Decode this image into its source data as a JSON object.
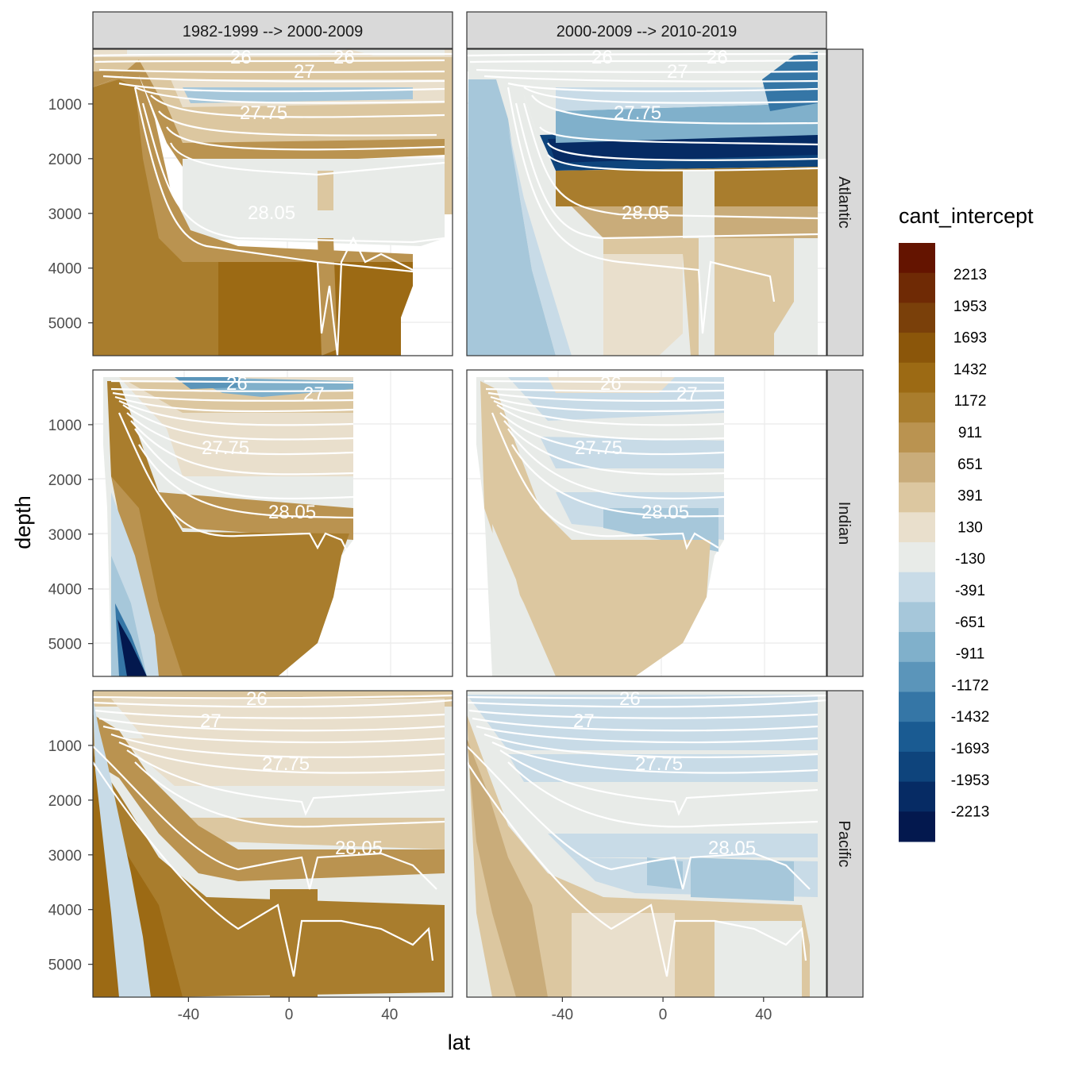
{
  "chart_data": {
    "type": "heatmap",
    "xlabel": "lat",
    "ylabel": "depth",
    "x_ticks": [
      -40,
      0,
      40
    ],
    "y_ticks": [
      1000,
      2000,
      3000,
      4000,
      5000
    ],
    "xlim": [
      -78,
      65
    ],
    "ylim": [
      5600,
      0
    ],
    "y_reversed": true,
    "column_facets": [
      "1982-1999 --> 2000-2009",
      "2000-2009 --> 2010-2019"
    ],
    "row_facets": [
      "Atlantic",
      "Indian",
      "Pacific"
    ],
    "legend": {
      "title": "cant_intercept",
      "labels": [
        "2213",
        "1953",
        "1693",
        "1432",
        "1172",
        "911",
        "651",
        "391",
        "130",
        "-130",
        "-391",
        "-651",
        "-911",
        "-1172",
        "-1432",
        "-1693",
        "-1953",
        "-2213"
      ],
      "colors": [
        "#641400",
        "#6f2a05",
        "#7a400a",
        "#8b560a",
        "#9c6a14",
        "#a97d2d",
        "#ba9350",
        "#c9ac7a",
        "#dcc7a0",
        "#e9dfcc",
        "#e8ebe8",
        "#c8dbe7",
        "#a6c7da",
        "#80b0cb",
        "#5b95ba",
        "#3576a6",
        "#1a5b92",
        "#0e447c",
        "#062b64",
        "#03184e"
      ],
      "position": "right"
    },
    "contour_labels": [
      "26",
      "27",
      "27.75",
      "28.05"
    ],
    "panels": [
      {
        "row": "Atlantic",
        "col": "1982-1999 --> 2000-2009",
        "dominant_signal": "positive",
        "labels": [
          "26",
          "27",
          "27.75",
          "28.05"
        ]
      },
      {
        "row": "Atlantic",
        "col": "2000-2009 --> 2010-2019",
        "dominant_signal": "mixed, strong negative layer near 1500-2000 m",
        "labels": [
          "26",
          "27",
          "27.75",
          "28.05"
        ]
      },
      {
        "row": "Indian",
        "col": "1982-1999 --> 2000-2009",
        "dominant_signal": "positive deep, negative bottom near -55",
        "labels": [
          "26",
          "27",
          "27.75",
          "28.05"
        ]
      },
      {
        "row": "Indian",
        "col": "2000-2009 --> 2010-2019",
        "dominant_signal": "weak positive, slight negative",
        "labels": [
          "26",
          "27",
          "27.75",
          "28.05"
        ]
      },
      {
        "row": "Pacific",
        "col": "1982-1999 --> 2000-2009",
        "dominant_signal": "positive",
        "labels": [
          "26",
          "27",
          "27.75",
          "28.05"
        ]
      },
      {
        "row": "Pacific",
        "col": "2000-2009 --> 2010-2019",
        "dominant_signal": "mixed, negative mid-depth",
        "labels": [
          "26",
          "27",
          "27.75",
          "28.05"
        ]
      }
    ]
  }
}
